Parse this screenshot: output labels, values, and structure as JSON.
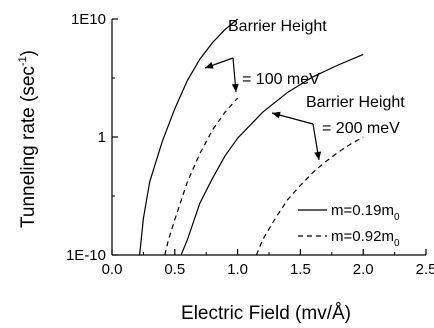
{
  "chart_data": {
    "type": "line",
    "xlabel": "Electric Field (mv/Å)",
    "ylabel": "Tunneling rate (sec",
    "ylabel_sup": "-1",
    "ylabel_close": ")",
    "xlim": [
      0.0,
      2.5
    ],
    "ylim_log10": [
      -10,
      10
    ],
    "y_scale": "log",
    "x_ticks": [
      0.0,
      0.5,
      1.0,
      1.5,
      2.0,
      2.5
    ],
    "x_tick_labels": [
      "0.0",
      "0.5",
      "1.0",
      "1.5",
      "2.0",
      "2.5"
    ],
    "y_ticks_log10": [
      -10,
      0,
      10
    ],
    "y_tick_labels": [
      "1E-10",
      "1",
      "1E10"
    ],
    "grid": false,
    "legend_position": "bottom-right",
    "legend": [
      {
        "style": "solid",
        "label": "m=0.19m",
        "sub": "0"
      },
      {
        "style": "dashed",
        "label": "m=0.92m",
        "sub": "0"
      }
    ],
    "annotations": [
      {
        "line1": "Barrier Height",
        "line2": "= 100 meV"
      },
      {
        "line1": "Barrier Height",
        "line2": "= 200 meV"
      }
    ],
    "series": [
      {
        "style": "solid",
        "x": [
          0.22,
          0.25,
          0.3,
          0.4,
          0.5,
          0.6,
          0.7,
          0.8,
          0.9,
          1.0
        ],
        "log10_y": [
          -10,
          -6.9,
          -3.8,
          -0.4,
          2.4,
          4.8,
          6.6,
          8.0,
          9.1,
          10.0
        ]
      },
      {
        "style": "dashed",
        "x": [
          0.42,
          0.45,
          0.5,
          0.6,
          0.7,
          0.8,
          0.9,
          1.0
        ],
        "log10_y": [
          -10,
          -8.7,
          -7.0,
          -3.8,
          -1.4,
          0.6,
          2.1,
          3.3
        ]
      },
      {
        "style": "solid",
        "x": [
          0.55,
          0.6,
          0.7,
          0.8,
          0.9,
          1.0,
          1.2,
          1.4,
          1.6,
          1.8,
          2.0
        ],
        "log10_y": [
          -10,
          -8.7,
          -5.6,
          -3.5,
          -1.6,
          -0.1,
          2.1,
          3.8,
          5.1,
          6.1,
          7.0
        ]
      },
      {
        "style": "dashed",
        "x": [
          1.15,
          1.2,
          1.3,
          1.4,
          1.5,
          1.6,
          1.7,
          1.8,
          1.9,
          2.0
        ],
        "log10_y": [
          -10,
          -8.7,
          -6.9,
          -5.3,
          -4.1,
          -3.0,
          -2.1,
          -1.3,
          -0.6,
          0.0
        ]
      }
    ]
  }
}
